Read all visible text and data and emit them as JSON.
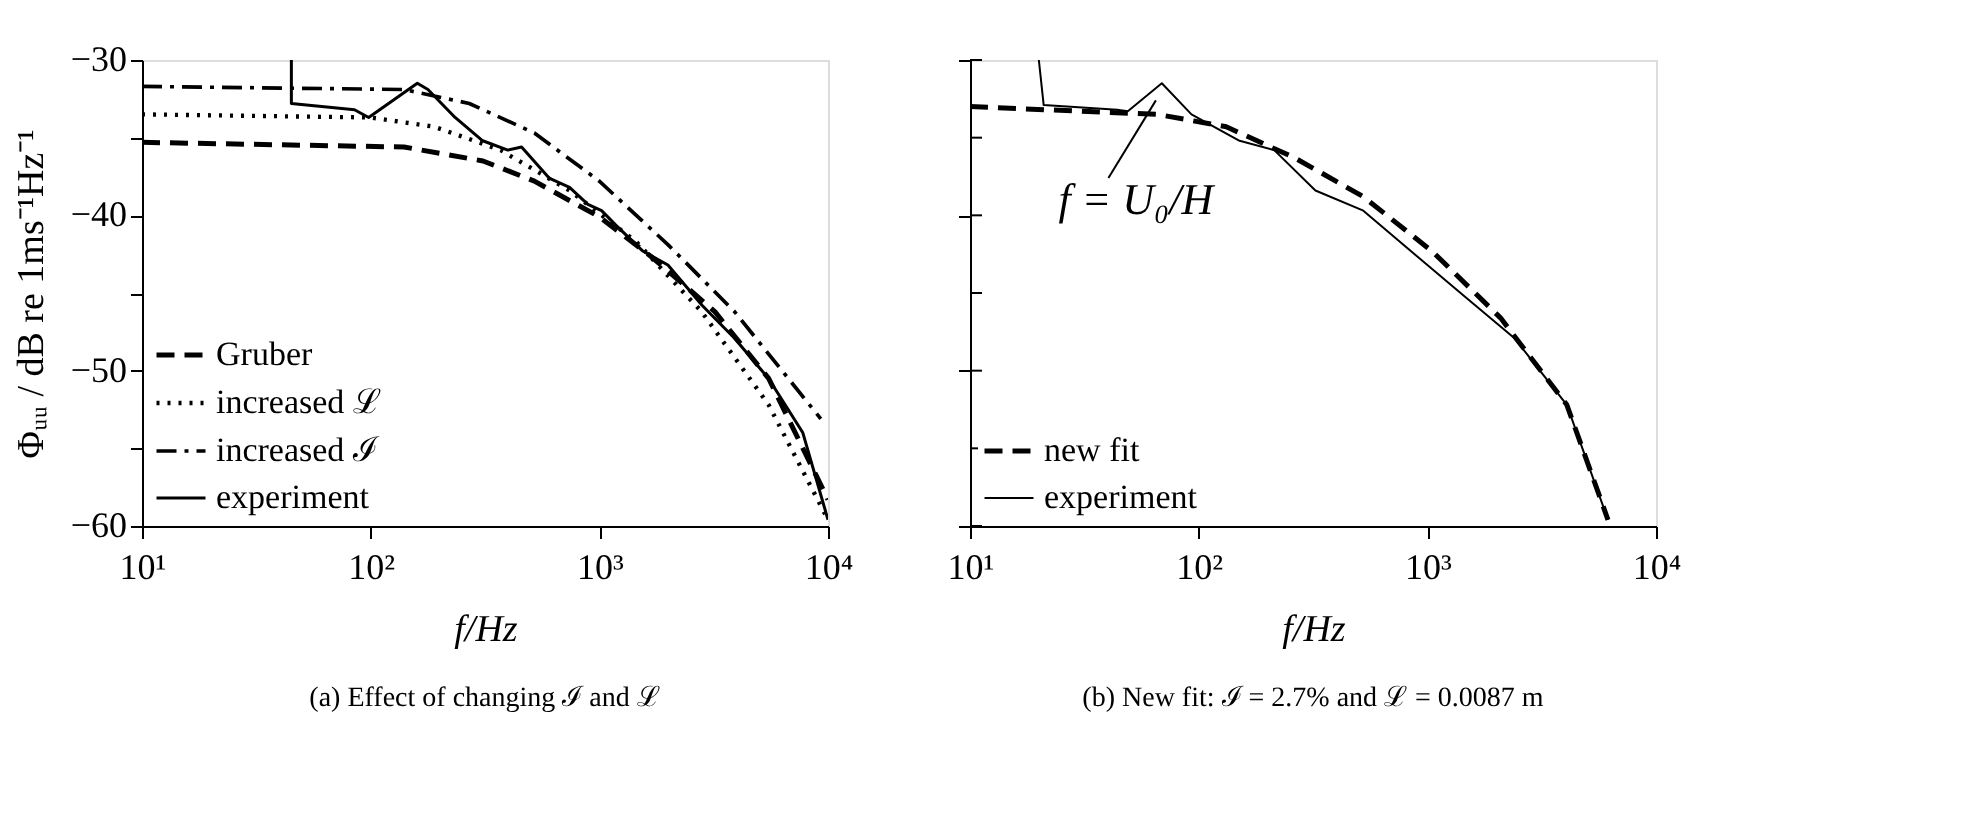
{
  "chart_data": [
    {
      "type": "line",
      "title": "(a) Effect of changing ℐ and ℒ",
      "xlabel": "f/Hz",
      "ylabel": "Φᵤᵤ / dB re 1ms⁻¹Hz⁻¹",
      "log": "x",
      "grid": false,
      "legend": "bottom left",
      "xlim": [
        10,
        10000
      ],
      "xticks": [
        {
          "value": 10,
          "label": "10¹"
        },
        {
          "value": 100,
          "label": "10²"
        },
        {
          "value": 1000,
          "label": "10³"
        },
        {
          "value": 10000,
          "label": "10⁴"
        }
      ],
      "ylim": [
        -60,
        -30
      ],
      "yticks": [
        -60,
        {
          "value": -55,
          "label": null
        },
        -50,
        {
          "value": -45,
          "label": null
        },
        -40,
        {
          "value": -35,
          "label": null
        },
        -30
      ],
      "series": [
        {
          "name": "Gruber",
          "color": "#000000",
          "line_style": "dashed",
          "x": [
            10,
            140,
            310,
            520,
            1000,
            1700,
            3200,
            5500,
            10000
          ],
          "values": [
            -35.3,
            -35.6,
            -36.5,
            -37.8,
            -40.1,
            -42.7,
            -46.2,
            -50.5,
            -58.3
          ]
        },
        {
          "name": "increased ℒ",
          "color": "#000000",
          "line_style": "dotted",
          "x": [
            10,
            100,
            190,
            370,
            740,
            1450,
            2800,
            5500,
            10000
          ],
          "values": [
            -33.5,
            -33.7,
            -34.3,
            -35.8,
            -38.4,
            -41.7,
            -46.2,
            -52.2,
            -59.6
          ]
        },
        {
          "name": "increased ℐ",
          "color": "#000000",
          "line_style": "dashdot",
          "x": [
            10,
            140,
            270,
            520,
            1000,
            2000,
            3900,
            9300
          ],
          "values": [
            -31.7,
            -31.9,
            -32.8,
            -34.7,
            -37.8,
            -41.9,
            -46.2,
            -53.1
          ]
        },
        {
          "name": "experiment",
          "color": "#000000",
          "line_style": "solid",
          "x": [
            45,
            45,
            85,
            98,
            160,
            178,
            234,
            309,
            398,
            457,
            603,
            741,
            891,
            1023,
            1175,
            1549,
            1995,
            2818,
            3890,
            5495,
            7762,
            10000
          ],
          "values": [
            -30,
            -32.8,
            -33.2,
            -33.7,
            -31.5,
            -31.9,
            -33.7,
            -35.2,
            -35.8,
            -35.6,
            -37.6,
            -38.2,
            -39.3,
            -39.7,
            -40.6,
            -42.3,
            -43.2,
            -45.8,
            -47.9,
            -50.5,
            -54,
            -59.6
          ]
        }
      ]
    },
    {
      "type": "line",
      "title": "(b) New fit: ℐ = 2.7% and ℒ = 0.0087 m",
      "xlabel": "f/Hz",
      "log": "x",
      "grid": false,
      "legend": "bottom left",
      "tick_labels": "x",
      "xlim": [
        10,
        10000
      ],
      "xticks": [
        {
          "value": 10,
          "label": "10¹"
        },
        {
          "value": 100,
          "label": "10²"
        },
        {
          "value": 1000,
          "label": "10³"
        },
        {
          "value": 10000,
          "label": "10⁴"
        }
      ],
      "ylim": [
        -60,
        -30
      ],
      "yticks": [
        -60,
        {
          "value": -55,
          "label": null
        },
        -50,
        {
          "value": -45,
          "label": null
        },
        -40,
        {
          "value": -35,
          "label": null
        },
        -30
      ],
      "annotations": [
        {
          "text": "f = U₀/H",
          "x": 65,
          "y": -32.6
        }
      ],
      "series": [
        {
          "name": "new fit",
          "color": "#000000",
          "line_style": "dashed",
          "x": [
            10,
            66,
            132,
            263,
            525,
            1047,
            2089,
            4074,
            6166
          ],
          "values": [
            -33,
            -33.5,
            -34.3,
            -36.3,
            -38.8,
            -42.3,
            -46.6,
            -52.2,
            -59.6
          ]
        },
        {
          "name": "experiment",
          "color": "#000000",
          "line_style": "solid",
          "x": [
            20,
            21,
            44,
            49,
            69,
            93,
            151,
            214,
            324,
            525,
            912,
            1479,
            2399,
            4074,
            6166
          ],
          "values": [
            -30,
            -32.9,
            -33.2,
            -33.3,
            -31.5,
            -33.5,
            -35.2,
            -35.8,
            -38.4,
            -39.7,
            -42.7,
            -45.3,
            -47.9,
            -52.2,
            -59.6
          ]
        }
      ]
    }
  ]
}
